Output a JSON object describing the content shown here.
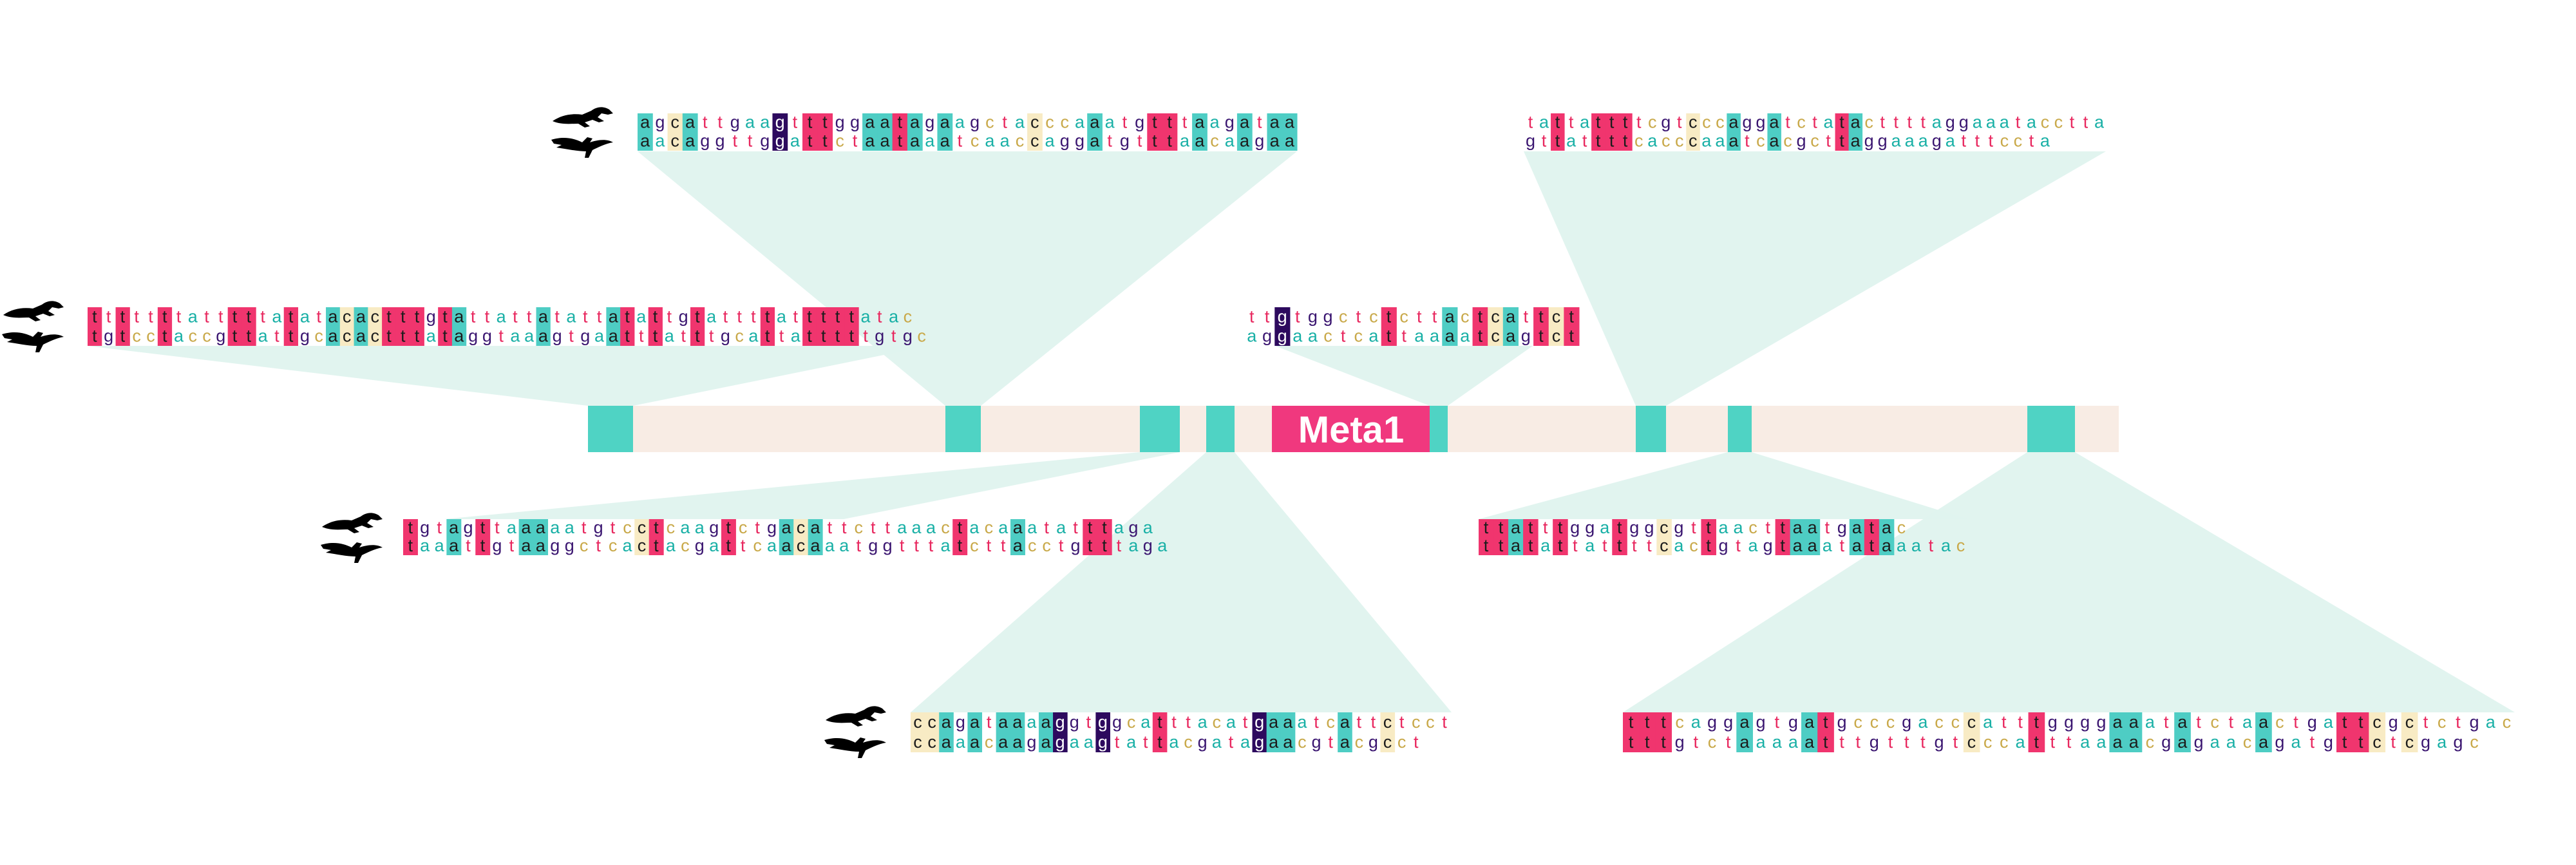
{
  "gene": {
    "label": "Meta1"
  },
  "colors": {
    "A": "#4ecdc4",
    "T": "#f0356e",
    "G": "#2d0a5e",
    "C": "#f8ebc4",
    "mismatch_A": "#4ecdc4",
    "mismatch_T": "#f0356e",
    "mismatch_G": "#6b2d92",
    "mismatch_C": "#e8d79a",
    "locus_bar": "#f8ece4",
    "conserved_block": "#4fd3c4",
    "gene_box": "#f0387e",
    "connector": "#dff3ee"
  },
  "species": {
    "top_icon": "lizard-silhouette",
    "bottom_icon": "bird-silhouette"
  },
  "alignments": [
    {
      "id": "block-1",
      "seq1": "tttttttatttttatatacactttgtattattatattatattgtattttatttttatac",
      "seq2": "tgtcctaccgttattgcacactttataggtaaagtgaatttatttgcattatttttgtgc"
    },
    {
      "id": "block-2",
      "seq1": "tgtagttaaaaatgtcctcaagtctgacattcttaaactacaaatatttaga",
      "seq2": "taaattgtaaggctcactacgattcaacaaatggtttatcttacctgtttaga"
    },
    {
      "id": "block-3",
      "seq1": "agcattgaagtttggaatagaagctacccaaatgtttaagataa",
      "seq2": "aacaggttggattctaataaatcaaccaggatgtttaacaagaa"
    },
    {
      "id": "block-4",
      "seq1": "ccagataaaaggtggcatttacatgaaatcattctcct",
      "seq2": "ccaaacaagagaagtattacgatagaacgtacgcct"
    },
    {
      "id": "block-5",
      "seq1": "ttgtggctctcttactcattct",
      "seq2": "aggaactcattaaaatcagtct"
    },
    {
      "id": "block-6",
      "seq1": "tattattttcgtcccaggatctatacttttaggaaatacctta",
      "seq2": "gttattttcacccaaatcacgcttaggaaagatttccta"
    },
    {
      "id": "block-7",
      "seq1": "ttatttggatggcgttaacttaatgatac",
      "seq2": "ttatattattttcactgtagtaaatataaatac"
    },
    {
      "id": "block-8",
      "seq1": "tttcaggagtgatgcccgacccatttggggaaatatctaactgattcgctctgac",
      "seq2": "tttgtctaaaaatttgtttgtcccatttaaaacgagaacagatgttctcgagc"
    }
  ]
}
